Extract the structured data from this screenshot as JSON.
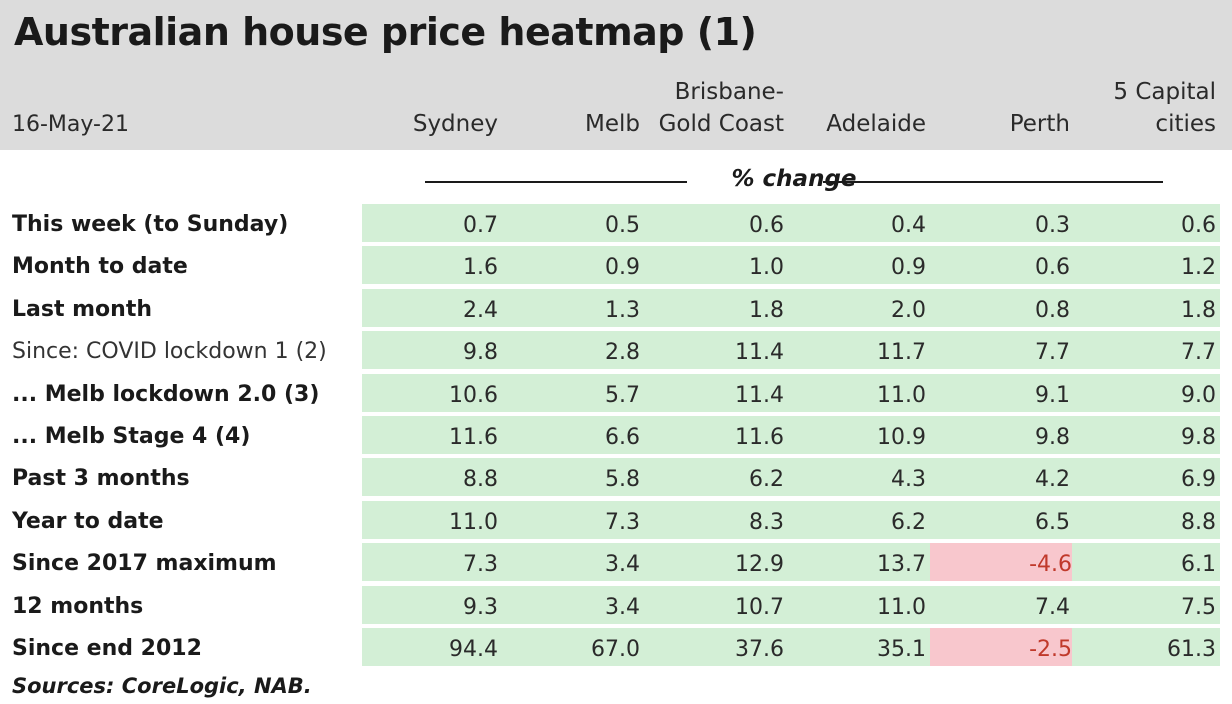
{
  "title": "Australian house price heatmap (1)",
  "date": "16-May-21",
  "subheader": "% change",
  "source": "Sources: CoreLogic, NAB.",
  "colors": {
    "positive": "#d3efd6",
    "negative": "#f8c7cd",
    "header_band": "#dcdcdc"
  },
  "chart_data": {
    "type": "table",
    "title": "Australian house price heatmap (1)",
    "columns": [
      {
        "line1": "",
        "line2": "Sydney"
      },
      {
        "line1": "",
        "line2": "Melb"
      },
      {
        "line1": "Brisbane-",
        "line2": "Gold Coast"
      },
      {
        "line1": "",
        "line2": "Adelaide"
      },
      {
        "line1": "",
        "line2": "Perth"
      },
      {
        "line1": "5 Capital",
        "line2": "cities"
      }
    ],
    "rows": [
      {
        "label": "This week (to Sunday)",
        "style": "bold",
        "values": [
          "0.7",
          "0.5",
          "0.6",
          "0.4",
          "0.3",
          "0.6"
        ]
      },
      {
        "label": "Month to date",
        "style": "bold",
        "values": [
          "1.6",
          "0.9",
          "1.0",
          "0.9",
          "0.6",
          "1.2"
        ]
      },
      {
        "label": "Last month",
        "style": "bold",
        "values": [
          "2.4",
          "1.3",
          "1.8",
          "2.0",
          "0.8",
          "1.8"
        ]
      },
      {
        "label": "Since: COVID lockdown 1 (2)",
        "style": "plain",
        "values": [
          "9.8",
          "2.8",
          "11.4",
          "11.7",
          "7.7",
          "7.7"
        ]
      },
      {
        "label": " ... Melb lockdown 2.0 (3)",
        "style": "bold",
        "values": [
          "10.6",
          "5.7",
          "11.4",
          "11.0",
          "9.1",
          "9.0"
        ]
      },
      {
        "label": " ... Melb Stage 4 (4)",
        "style": "bold",
        "values": [
          "11.6",
          "6.6",
          "11.6",
          "10.9",
          "9.8",
          "9.8"
        ]
      },
      {
        "label": "Past 3 months",
        "style": "bold",
        "values": [
          "8.8",
          "5.8",
          "6.2",
          "4.3",
          "4.2",
          "6.9"
        ]
      },
      {
        "label": "Year to date",
        "style": "bold",
        "values": [
          "11.0",
          "7.3",
          "8.3",
          "6.2",
          "6.5",
          "8.8"
        ]
      },
      {
        "label": "Since 2017 maximum",
        "style": "bold",
        "values": [
          "7.3",
          "3.4",
          "12.9",
          "13.7",
          "-4.6",
          "6.1"
        ]
      },
      {
        "label": "12 months",
        "style": "bold",
        "values": [
          "9.3",
          "3.4",
          "10.7",
          "11.0",
          "7.4",
          "7.5"
        ]
      },
      {
        "label": "Since end 2012",
        "style": "bold",
        "values": [
          "94.4",
          "67.0",
          "37.6",
          "35.1",
          "-2.5",
          "61.3"
        ]
      }
    ]
  }
}
